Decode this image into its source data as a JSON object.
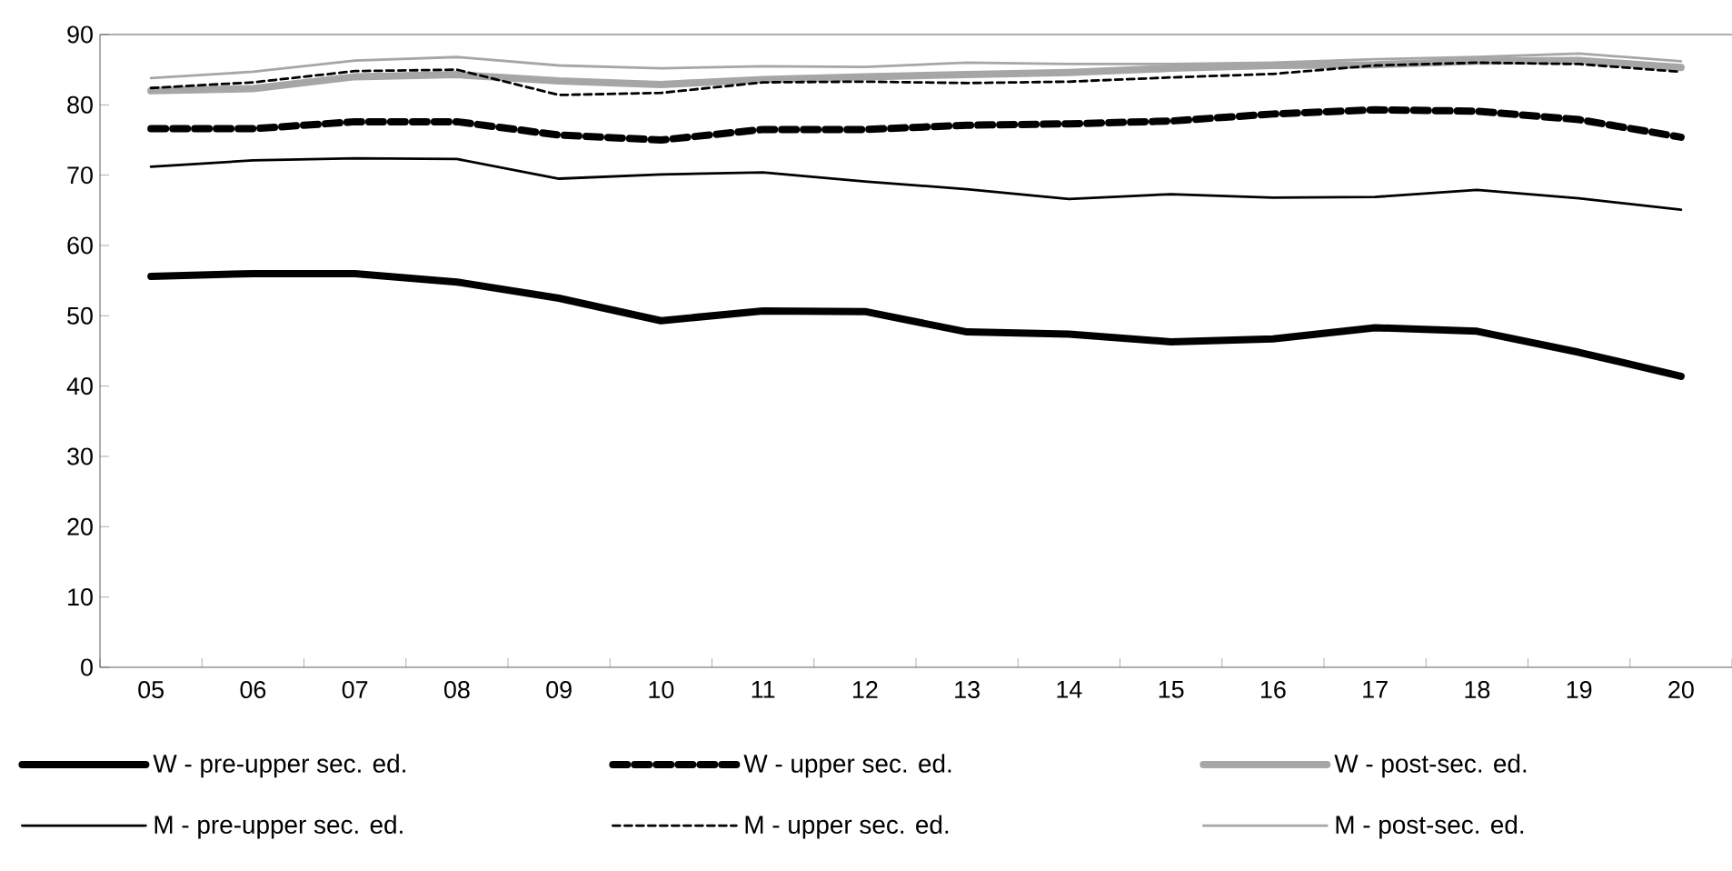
{
  "chart_data": {
    "type": "line",
    "categories": [
      "05",
      "06",
      "07",
      "08",
      "09",
      "10",
      "11",
      "12",
      "13",
      "14",
      "15",
      "16",
      "17",
      "18",
      "19",
      "20"
    ],
    "series": [
      {
        "name": "W - pre-upper sec. ed.",
        "color": "#000000",
        "line_style": "solid",
        "values": [
          55.6,
          56.0,
          56.0,
          54.8,
          52.5,
          49.3,
          50.7,
          50.6,
          47.7,
          47.4,
          46.3,
          46.7,
          48.3,
          47.8,
          44.8,
          41.4
        ]
      },
      {
        "name": "W - upper sec. ed.",
        "color": "#000000",
        "line_style": "dashed",
        "values": [
          76.6,
          76.6,
          77.6,
          77.6,
          75.7,
          75.0,
          76.5,
          76.5,
          77.1,
          77.3,
          77.7,
          78.7,
          79.3,
          79.1,
          77.9,
          75.4
        ]
      },
      {
        "name": "W - post-sec. ed.",
        "color": "#a6a6a6",
        "line_style": "solid",
        "values": [
          82.0,
          82.3,
          84.0,
          84.3,
          83.4,
          82.9,
          83.6,
          84.0,
          84.3,
          84.6,
          85.2,
          85.6,
          85.7,
          86.2,
          86.3,
          85.3
        ]
      },
      {
        "name": "M - pre-upper sec. ed.",
        "color": "#000000",
        "line_style": "solid",
        "values": [
          71.2,
          72.1,
          72.4,
          72.3,
          69.5,
          70.1,
          70.4,
          69.1,
          68.0,
          66.6,
          67.3,
          66.8,
          66.9,
          67.9,
          66.7,
          65.1
        ]
      },
      {
        "name": "M - upper sec. ed.",
        "color": "#000000",
        "line_style": "dashed",
        "values": [
          82.4,
          83.2,
          84.8,
          85.0,
          81.4,
          81.7,
          83.2,
          83.3,
          83.1,
          83.3,
          83.9,
          84.4,
          85.6,
          86.0,
          85.8,
          84.7
        ]
      },
      {
        "name": "M - post-sec. ed.",
        "color": "#a6a6a6",
        "line_style": "solid",
        "values": [
          83.8,
          84.7,
          86.3,
          86.8,
          85.6,
          85.2,
          85.5,
          85.4,
          86.0,
          85.8,
          85.8,
          86.0,
          86.5,
          86.8,
          87.3,
          86.2
        ]
      }
    ],
    "ylim": [
      0,
      90
    ],
    "yticks": [
      0,
      10,
      20,
      30,
      40,
      50,
      60,
      70,
      80,
      90
    ],
    "grid": false,
    "legend": "bottom"
  }
}
